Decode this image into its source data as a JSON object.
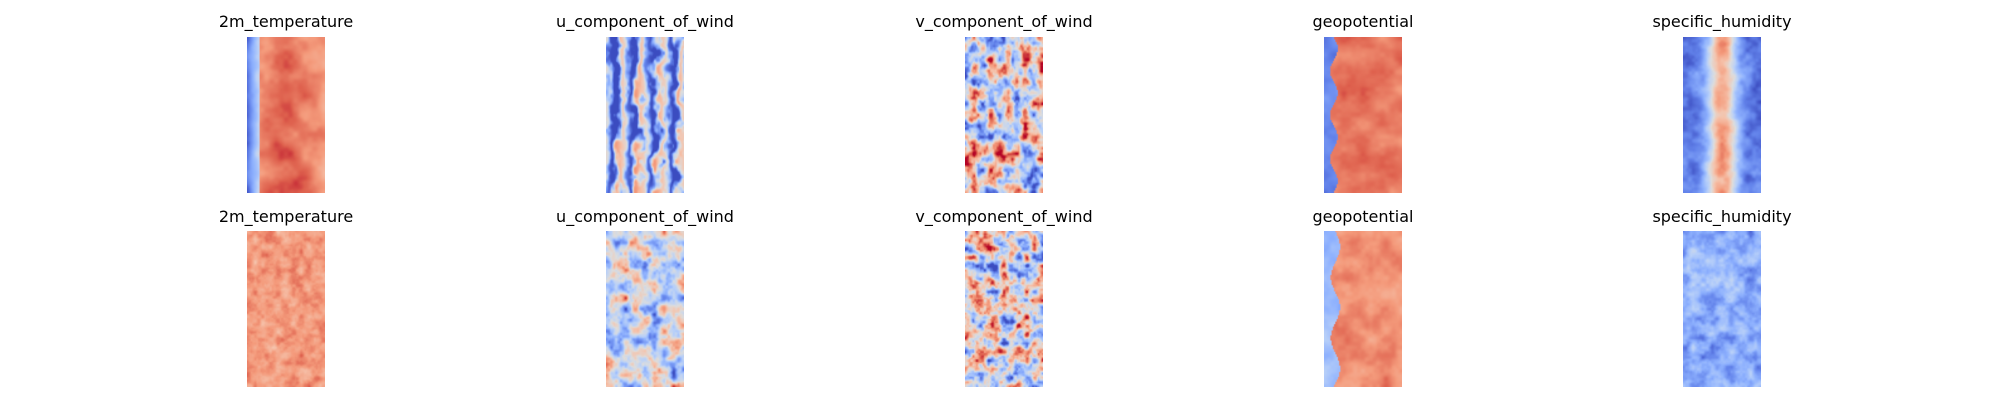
{
  "chart_data": {
    "type": "heatmap",
    "colormap": "coolwarm",
    "colors": {
      "cold": "#3b4cc0",
      "neutral": "#dddddd",
      "warm": "#b40426"
    },
    "panels": [
      {
        "row": 1,
        "col": 1,
        "title": "2m_temperature",
        "pattern": "temperature"
      },
      {
        "row": 1,
        "col": 2,
        "title": "u_component_of_wind",
        "pattern": "wind_u_streaky"
      },
      {
        "row": 1,
        "col": 3,
        "title": "v_component_of_wind",
        "pattern": "wind_v_noisy"
      },
      {
        "row": 1,
        "col": 4,
        "title": "geopotential",
        "pattern": "geopotential"
      },
      {
        "row": 1,
        "col": 5,
        "title": "specific_humidity",
        "pattern": "humidity_band"
      },
      {
        "row": 2,
        "col": 1,
        "title": "2m_temperature",
        "pattern": "temperature_blocky"
      },
      {
        "row": 2,
        "col": 2,
        "title": "u_component_of_wind",
        "pattern": "wind_u_light"
      },
      {
        "row": 2,
        "col": 3,
        "title": "v_component_of_wind",
        "pattern": "wind_v_blocky"
      },
      {
        "row": 2,
        "col": 4,
        "title": "geopotential",
        "pattern": "geopotential_edge"
      },
      {
        "row": 2,
        "col": 5,
        "title": "specific_humidity",
        "pattern": "humidity_blue"
      }
    ]
  }
}
